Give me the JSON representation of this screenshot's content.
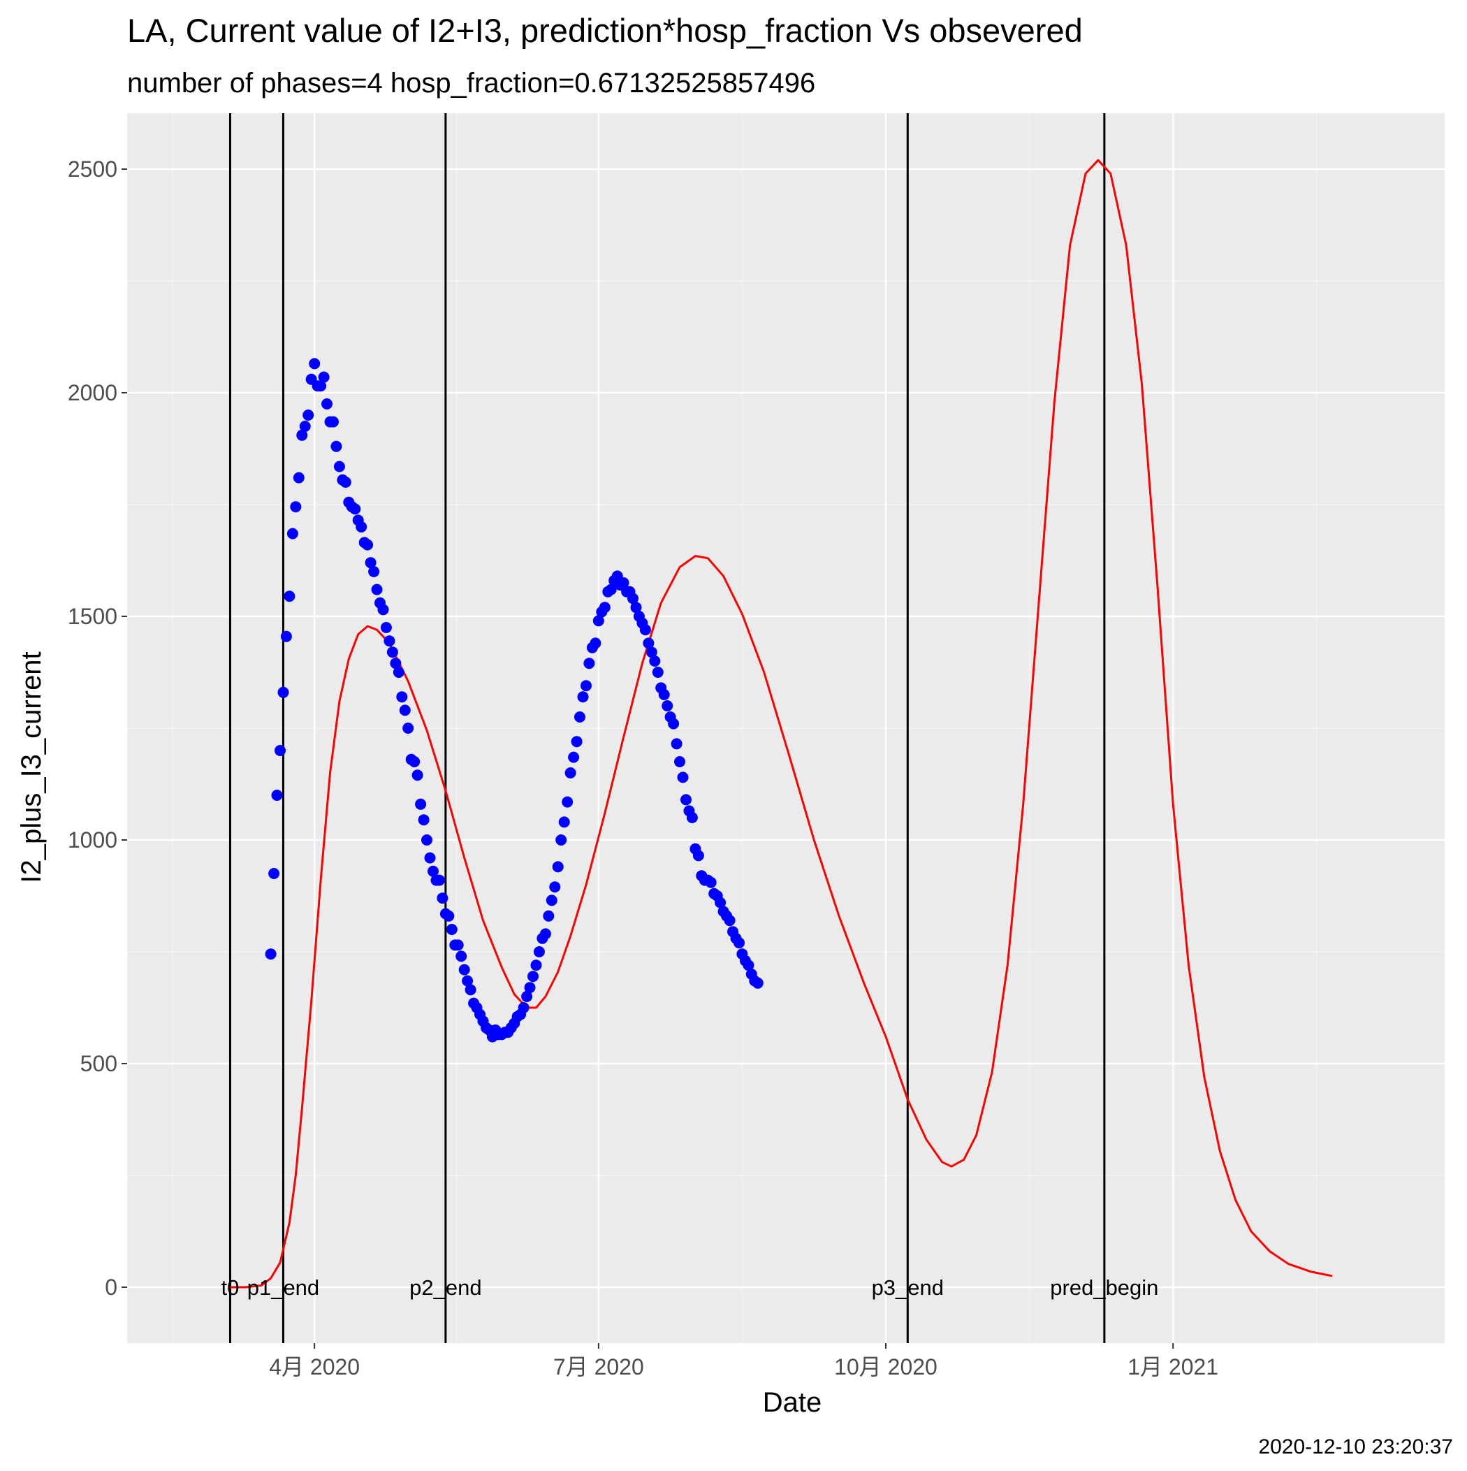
{
  "chart_data": {
    "type": "scatter",
    "title": "LA, Current value of I2+I3, prediction*hosp_fraction Vs obsevered",
    "subtitle": "number of phases=4   hosp_fraction=0.67132525857496",
    "xlabel": "Date",
    "ylabel": "I2_plus_I3_current",
    "caption": "2020-12-10 23:20:37",
    "xlim": [
      "2020-02-01",
      "2021-03-29"
    ],
    "ylim": [
      -125,
      2625
    ],
    "grid": true,
    "legend": "none",
    "colors": {
      "panel_background": "#ebebeb",
      "grid_major": "#ffffff",
      "grid_minor": "#f5f5f5",
      "observed_points": "#0000ff",
      "prediction_line": "#ff0000",
      "phase_lines": "#000000"
    },
    "x_ticks": [
      {
        "date": "2020-04-01",
        "label": "4月 2020"
      },
      {
        "date": "2020-07-01",
        "label": "7月 2020"
      },
      {
        "date": "2020-10-01",
        "label": "10月 2020"
      },
      {
        "date": "2021-01-01",
        "label": "1月 2021"
      }
    ],
    "y_ticks": [
      {
        "value": 0,
        "label": "0"
      },
      {
        "value": 500,
        "label": "500"
      },
      {
        "value": 1000,
        "label": "1000"
      },
      {
        "value": 1500,
        "label": "1500"
      },
      {
        "value": 2000,
        "label": "2000"
      },
      {
        "value": 2500,
        "label": "2500"
      }
    ],
    "phase_markers": [
      {
        "date": "2020-03-05",
        "label": "t0"
      },
      {
        "date": "2020-03-22",
        "label": "p1_end"
      },
      {
        "date": "2020-05-13",
        "label": "p2_end"
      },
      {
        "date": "2020-10-08",
        "label": "p3_end"
      },
      {
        "date": "2020-12-10",
        "label": "pred_begin"
      }
    ],
    "series": [
      {
        "type": "scatter",
        "points": [
          [
            "2020-03-18",
            745
          ],
          [
            "2020-03-19",
            925
          ],
          [
            "2020-03-20",
            1100
          ],
          [
            "2020-03-21",
            1200
          ],
          [
            "2020-03-22",
            1330
          ],
          [
            "2020-03-23",
            1455
          ],
          [
            "2020-03-24",
            1545
          ],
          [
            "2020-03-25",
            1685
          ],
          [
            "2020-03-26",
            1745
          ],
          [
            "2020-03-27",
            1810
          ],
          [
            "2020-03-28",
            1905
          ],
          [
            "2020-03-29",
            1925
          ],
          [
            "2020-03-30",
            1950
          ],
          [
            "2020-03-31",
            2030
          ],
          [
            "2020-04-01",
            2065
          ],
          [
            "2020-04-02",
            2015
          ],
          [
            "2020-04-03",
            2015
          ],
          [
            "2020-04-04",
            2035
          ],
          [
            "2020-04-05",
            1975
          ],
          [
            "2020-04-06",
            1935
          ],
          [
            "2020-04-07",
            1935
          ],
          [
            "2020-04-08",
            1880
          ],
          [
            "2020-04-09",
            1835
          ],
          [
            "2020-04-10",
            1805
          ],
          [
            "2020-04-11",
            1800
          ],
          [
            "2020-04-12",
            1755
          ],
          [
            "2020-04-13",
            1745
          ],
          [
            "2020-04-14",
            1740
          ],
          [
            "2020-04-15",
            1715
          ],
          [
            "2020-04-16",
            1700
          ],
          [
            "2020-04-17",
            1665
          ],
          [
            "2020-04-18",
            1660
          ],
          [
            "2020-04-19",
            1620
          ],
          [
            "2020-04-20",
            1600
          ],
          [
            "2020-04-21",
            1560
          ],
          [
            "2020-04-22",
            1530
          ],
          [
            "2020-04-23",
            1515
          ],
          [
            "2020-04-24",
            1475
          ],
          [
            "2020-04-25",
            1445
          ],
          [
            "2020-04-26",
            1420
          ],
          [
            "2020-04-27",
            1395
          ],
          [
            "2020-04-28",
            1375
          ],
          [
            "2020-04-29",
            1320
          ],
          [
            "2020-04-30",
            1290
          ],
          [
            "2020-05-01",
            1250
          ],
          [
            "2020-05-02",
            1180
          ],
          [
            "2020-05-03",
            1175
          ],
          [
            "2020-05-04",
            1145
          ],
          [
            "2020-05-05",
            1080
          ],
          [
            "2020-05-06",
            1045
          ],
          [
            "2020-05-07",
            1000
          ],
          [
            "2020-05-08",
            960
          ],
          [
            "2020-05-09",
            930
          ],
          [
            "2020-05-10",
            910
          ],
          [
            "2020-05-11",
            910
          ],
          [
            "2020-05-12",
            870
          ],
          [
            "2020-05-13",
            835
          ],
          [
            "2020-05-14",
            830
          ],
          [
            "2020-05-15",
            800
          ],
          [
            "2020-05-16",
            765
          ],
          [
            "2020-05-17",
            765
          ],
          [
            "2020-05-18",
            740
          ],
          [
            "2020-05-19",
            710
          ],
          [
            "2020-05-20",
            685
          ],
          [
            "2020-05-21",
            665
          ],
          [
            "2020-05-22",
            635
          ],
          [
            "2020-05-23",
            625
          ],
          [
            "2020-05-24",
            610
          ],
          [
            "2020-05-25",
            595
          ],
          [
            "2020-05-26",
            580
          ],
          [
            "2020-05-27",
            575
          ],
          [
            "2020-05-28",
            560
          ],
          [
            "2020-05-29",
            575
          ],
          [
            "2020-05-30",
            565
          ],
          [
            "2020-05-31",
            565
          ],
          [
            "2020-06-01",
            570
          ],
          [
            "2020-06-02",
            570
          ],
          [
            "2020-06-03",
            580
          ],
          [
            "2020-06-04",
            590
          ],
          [
            "2020-06-05",
            605
          ],
          [
            "2020-06-06",
            610
          ],
          [
            "2020-06-07",
            625
          ],
          [
            "2020-06-08",
            650
          ],
          [
            "2020-06-09",
            670
          ],
          [
            "2020-06-10",
            695
          ],
          [
            "2020-06-11",
            720
          ],
          [
            "2020-06-12",
            750
          ],
          [
            "2020-06-13",
            780
          ],
          [
            "2020-06-14",
            790
          ],
          [
            "2020-06-15",
            830
          ],
          [
            "2020-06-16",
            865
          ],
          [
            "2020-06-17",
            895
          ],
          [
            "2020-06-18",
            940
          ],
          [
            "2020-06-19",
            1000
          ],
          [
            "2020-06-20",
            1040
          ],
          [
            "2020-06-21",
            1085
          ],
          [
            "2020-06-22",
            1150
          ],
          [
            "2020-06-23",
            1185
          ],
          [
            "2020-06-24",
            1220
          ],
          [
            "2020-06-25",
            1275
          ],
          [
            "2020-06-26",
            1320
          ],
          [
            "2020-06-27",
            1345
          ],
          [
            "2020-06-28",
            1395
          ],
          [
            "2020-06-29",
            1430
          ],
          [
            "2020-06-30",
            1440
          ],
          [
            "2020-07-01",
            1490
          ],
          [
            "2020-07-02",
            1510
          ],
          [
            "2020-07-03",
            1520
          ],
          [
            "2020-07-04",
            1555
          ],
          [
            "2020-07-05",
            1560
          ],
          [
            "2020-07-06",
            1580
          ],
          [
            "2020-07-07",
            1590
          ],
          [
            "2020-07-08",
            1570
          ],
          [
            "2020-07-09",
            1575
          ],
          [
            "2020-07-10",
            1555
          ],
          [
            "2020-07-11",
            1555
          ],
          [
            "2020-07-12",
            1540
          ],
          [
            "2020-07-13",
            1520
          ],
          [
            "2020-07-14",
            1500
          ],
          [
            "2020-07-15",
            1485
          ],
          [
            "2020-07-16",
            1470
          ],
          [
            "2020-07-17",
            1440
          ],
          [
            "2020-07-18",
            1420
          ],
          [
            "2020-07-19",
            1400
          ],
          [
            "2020-07-20",
            1375
          ],
          [
            "2020-07-21",
            1340
          ],
          [
            "2020-07-22",
            1325
          ],
          [
            "2020-07-23",
            1300
          ],
          [
            "2020-07-24",
            1275
          ],
          [
            "2020-07-25",
            1260
          ],
          [
            "2020-07-26",
            1215
          ],
          [
            "2020-07-27",
            1175
          ],
          [
            "2020-07-28",
            1140
          ],
          [
            "2020-07-29",
            1090
          ],
          [
            "2020-07-30",
            1065
          ],
          [
            "2020-07-31",
            1050
          ],
          [
            "2020-08-01",
            980
          ],
          [
            "2020-08-02",
            965
          ],
          [
            "2020-08-03",
            920
          ],
          [
            "2020-08-04",
            910
          ],
          [
            "2020-08-05",
            910
          ],
          [
            "2020-08-06",
            905
          ],
          [
            "2020-08-07",
            880
          ],
          [
            "2020-08-08",
            875
          ],
          [
            "2020-08-09",
            860
          ],
          [
            "2020-08-10",
            840
          ],
          [
            "2020-08-11",
            830
          ],
          [
            "2020-08-12",
            820
          ],
          [
            "2020-08-13",
            795
          ],
          [
            "2020-08-14",
            780
          ],
          [
            "2020-08-15",
            770
          ],
          [
            "2020-08-16",
            745
          ],
          [
            "2020-08-17",
            730
          ],
          [
            "2020-08-18",
            720
          ],
          [
            "2020-08-19",
            700
          ],
          [
            "2020-08-20",
            685
          ],
          [
            "2020-08-21",
            680
          ]
        ]
      },
      {
        "type": "line",
        "points": [
          [
            "2020-03-05",
            0
          ],
          [
            "2020-03-10",
            0
          ],
          [
            "2020-03-15",
            4
          ],
          [
            "2020-03-18",
            20
          ],
          [
            "2020-03-21",
            55
          ],
          [
            "2020-03-24",
            145
          ],
          [
            "2020-03-26",
            250
          ],
          [
            "2020-03-28",
            400
          ],
          [
            "2020-03-31",
            640
          ],
          [
            "2020-04-03",
            910
          ],
          [
            "2020-04-06",
            1150
          ],
          [
            "2020-04-09",
            1310
          ],
          [
            "2020-04-12",
            1405
          ],
          [
            "2020-04-15",
            1460
          ],
          [
            "2020-04-18",
            1478
          ],
          [
            "2020-04-21",
            1470
          ],
          [
            "2020-04-25",
            1440
          ],
          [
            "2020-05-01",
            1355
          ],
          [
            "2020-05-07",
            1245
          ],
          [
            "2020-05-13",
            1110
          ],
          [
            "2020-05-19",
            960
          ],
          [
            "2020-05-25",
            820
          ],
          [
            "2020-05-31",
            715
          ],
          [
            "2020-06-04",
            655
          ],
          [
            "2020-06-08",
            625
          ],
          [
            "2020-06-11",
            625
          ],
          [
            "2020-06-14",
            650
          ],
          [
            "2020-06-18",
            705
          ],
          [
            "2020-06-22",
            785
          ],
          [
            "2020-06-27",
            900
          ],
          [
            "2020-07-03",
            1060
          ],
          [
            "2020-07-09",
            1230
          ],
          [
            "2020-07-15",
            1395
          ],
          [
            "2020-07-21",
            1530
          ],
          [
            "2020-07-27",
            1610
          ],
          [
            "2020-08-01",
            1635
          ],
          [
            "2020-08-05",
            1630
          ],
          [
            "2020-08-10",
            1590
          ],
          [
            "2020-08-16",
            1505
          ],
          [
            "2020-08-23",
            1375
          ],
          [
            "2020-08-31",
            1190
          ],
          [
            "2020-09-08",
            1000
          ],
          [
            "2020-09-16",
            830
          ],
          [
            "2020-09-24",
            680
          ],
          [
            "2020-10-01",
            560
          ],
          [
            "2020-10-08",
            420
          ],
          [
            "2020-10-14",
            330
          ],
          [
            "2020-10-19",
            280
          ],
          [
            "2020-10-22",
            270
          ],
          [
            "2020-10-26",
            285
          ],
          [
            "2020-10-30",
            340
          ],
          [
            "2020-11-04",
            480
          ],
          [
            "2020-11-09",
            720
          ],
          [
            "2020-11-14",
            1080
          ],
          [
            "2020-11-19",
            1530
          ],
          [
            "2020-11-24",
            1980
          ],
          [
            "2020-11-29",
            2330
          ],
          [
            "2020-12-04",
            2490
          ],
          [
            "2020-12-08",
            2520
          ],
          [
            "2020-12-12",
            2490
          ],
          [
            "2020-12-17",
            2330
          ],
          [
            "2020-12-22",
            2020
          ],
          [
            "2020-12-27",
            1570
          ],
          [
            "2021-01-01",
            1080
          ],
          [
            "2021-01-06",
            720
          ],
          [
            "2021-01-11",
            470
          ],
          [
            "2021-01-16",
            305
          ],
          [
            "2021-01-21",
            195
          ],
          [
            "2021-01-26",
            125
          ],
          [
            "2021-02-01",
            80
          ],
          [
            "2021-02-07",
            52
          ],
          [
            "2021-02-14",
            35
          ],
          [
            "2021-02-21",
            25
          ]
        ]
      }
    ]
  }
}
